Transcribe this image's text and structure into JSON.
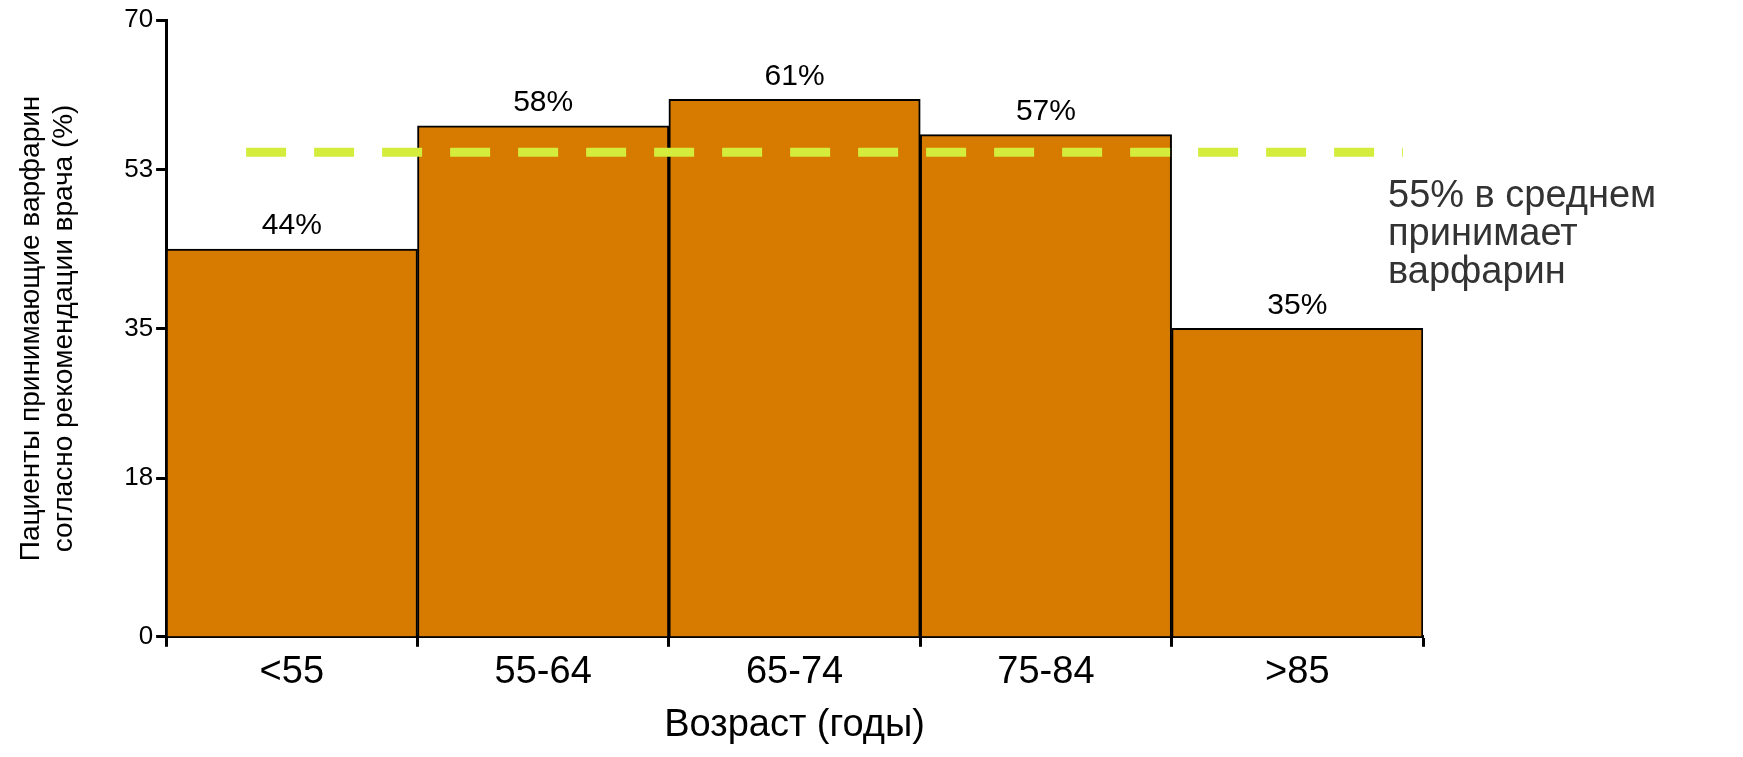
{
  "chart_data": {
    "type": "bar",
    "xlabel": "Возраст (годы)",
    "ylabel": "Пациенты принимающие варфарин согласно рекомендации врача (%)",
    "categories": [
      "<55",
      "55-64",
      "65-74",
      "75-84",
      ">85"
    ],
    "values": [
      44,
      58,
      61,
      57,
      35
    ],
    "color": "#d77a00",
    "value_labels": [
      "44%",
      "58%",
      "61%",
      "57%",
      "35%"
    ],
    "ylim": [
      0,
      70
    ],
    "yticks": [
      0,
      18,
      35,
      53,
      70
    ],
    "grid": false,
    "legend": false,
    "ref_lines": [
      {
        "axis": "y",
        "value": 55,
        "label": "55% в среднем принимает варфарин",
        "color": "#d4ec3c",
        "line_style": "dashed"
      }
    ]
  }
}
